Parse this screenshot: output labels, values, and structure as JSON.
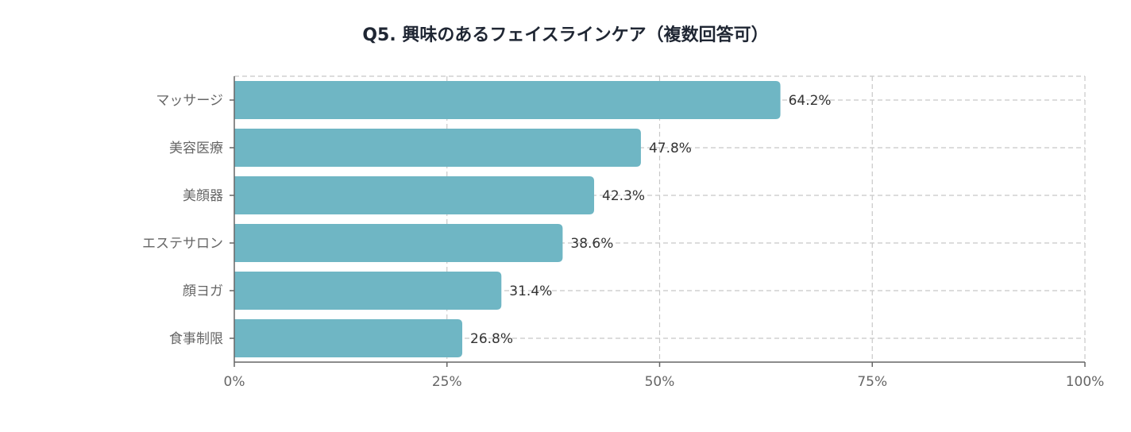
{
  "chart_data": {
    "type": "bar",
    "orientation": "horizontal",
    "title": "Q5. 興味のあるフェイスラインケア（複数回答可）",
    "xlabel": "",
    "ylabel": "",
    "categories": [
      "マッサージ",
      "美容医療",
      "美顔器",
      "エステサロン",
      "顔ヨガ",
      "食事制限"
    ],
    "values": [
      64.2,
      47.8,
      42.3,
      38.6,
      31.4,
      26.8
    ],
    "value_labels": [
      "64.2%",
      "47.8%",
      "42.3%",
      "38.6%",
      "31.4%",
      "26.8%"
    ],
    "xlim": [
      0,
      100
    ],
    "x_ticks": [
      0,
      25,
      50,
      75,
      100
    ],
    "x_tick_labels": [
      "0%",
      "25%",
      "50%",
      "75%",
      "100%"
    ],
    "grid": true,
    "legend": "none",
    "bar_color": "#6fb6c4"
  }
}
